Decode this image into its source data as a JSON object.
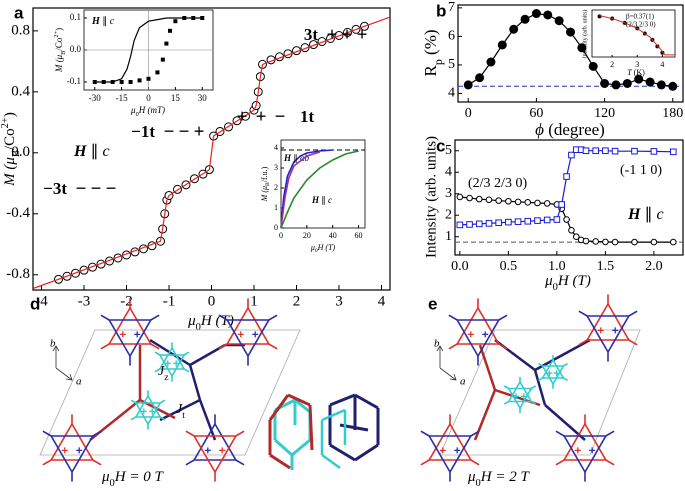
{
  "chart_data": [
    {
      "type": "scatter",
      "label": "a",
      "xlabel": [
        "μ",
        "0",
        "H (T)"
      ],
      "ylabel": [
        "M (μ",
        "B",
        "/Co",
        "2+",
        ")"
      ],
      "xlim": [
        -4.2,
        4.2
      ],
      "ylim": [
        -0.9,
        0.95
      ],
      "xticks": [
        -4,
        -3,
        -2,
        -1,
        0,
        1,
        2,
        3,
        4
      ],
      "yticks": [
        -0.8,
        -0.4,
        {
          "value": 0,
          "label": "0.0"
        },
        0.4,
        0.8
      ],
      "series": [
        {
          "color": "#000000",
          "marker": "open-circle",
          "x": [
            -3.6,
            -3.4,
            -3.2,
            -3.0,
            -2.8,
            -2.6,
            -2.4,
            -2.2,
            -2.0,
            -1.8,
            -1.6,
            -1.4,
            -1.2,
            -1.15,
            -1.1,
            -1.05,
            -1.0,
            -0.8,
            -0.6,
            -0.4,
            -0.2,
            -0.05,
            0.05,
            0.2,
            0.4,
            0.6,
            0.8,
            1.0,
            1.05,
            1.1,
            1.15,
            1.2,
            1.4,
            1.6,
            1.8,
            2.0,
            2.2,
            2.4,
            2.6,
            2.8,
            3.0,
            3.2,
            3.4,
            3.6
          ],
          "values": [
            -0.83,
            -0.81,
            -0.79,
            -0.77,
            -0.75,
            -0.73,
            -0.71,
            -0.69,
            -0.67,
            -0.65,
            -0.63,
            -0.61,
            -0.58,
            -0.5,
            -0.4,
            -0.31,
            -0.28,
            -0.24,
            -0.21,
            -0.17,
            -0.14,
            -0.11,
            0.11,
            0.14,
            0.17,
            0.21,
            0.24,
            0.28,
            0.31,
            0.4,
            0.5,
            0.58,
            0.61,
            0.63,
            0.65,
            0.67,
            0.69,
            0.71,
            0.73,
            0.75,
            0.77,
            0.79,
            0.81,
            0.83
          ]
        },
        {
          "color": "#e8231c",
          "marker": "none",
          "line": "solid",
          "x": [
            -4.2,
            -3.6,
            -1.2,
            -1.15,
            -1.1,
            -1.05,
            -1.0,
            -0.05,
            0.05,
            1.0,
            1.05,
            1.1,
            1.15,
            1.2,
            3.6,
            4.2
          ],
          "values": [
            -0.89,
            -0.83,
            -0.58,
            -0.5,
            -0.4,
            -0.31,
            -0.28,
            -0.11,
            0.11,
            0.28,
            0.31,
            0.4,
            0.5,
            0.58,
            0.83,
            0.89
          ]
        }
      ],
      "annotations": [
        {
          "text": "3t",
          "signs": [
            "+",
            "+",
            "+"
          ]
        },
        {
          "text": "1t",
          "signs": [
            "+",
            "+",
            "−"
          ]
        },
        {
          "text": "−1t",
          "signs": [
            "−",
            "−",
            "+"
          ]
        },
        {
          "text": "−3t",
          "signs": [
            "−",
            "−",
            "−"
          ]
        }
      ],
      "sign_colors": [
        "#e8231c",
        "#2b2fa8",
        "#22d3d3"
      ],
      "annotation": [
        "H",
        " ∥ ",
        "c"
      ]
    },
    {
      "type": "scatter",
      "xlim": [
        -36,
        36
      ],
      "ylim": [
        -0.125,
        0.125
      ],
      "xticks": [
        -30,
        -15,
        0,
        15,
        30
      ],
      "yticks": [
        -0.1,
        {
          "value": 0,
          "label": "0.0"
        },
        0.1
      ],
      "zero_lines": true,
      "xlabel": [
        "μ",
        "0",
        "H (mT)"
      ],
      "ylabel": [
        "M (μ",
        "B",
        "/Co",
        "2+",
        ")"
      ],
      "annotation": [
        "H",
        " ∥ ",
        "c"
      ],
      "series": [
        {
          "color": "#000000",
          "marker": "square",
          "x": [
            -30,
            -25,
            -20,
            -15,
            -10,
            -5,
            0,
            5,
            8,
            10,
            12,
            15,
            20,
            25,
            30
          ],
          "values": [
            -0.1,
            -0.1,
            -0.1,
            -0.1,
            -0.1,
            -0.095,
            -0.09,
            -0.07,
            -0.03,
            0.02,
            0.06,
            0.09,
            0.1,
            0.1,
            0.1
          ]
        },
        {
          "color": "#000000",
          "line": "solid",
          "x": [
            30,
            20,
            10,
            5,
            0,
            -5,
            -8,
            -10,
            -12,
            -15,
            -20,
            -30
          ],
          "values": [
            0.1,
            0.1,
            0.1,
            0.095,
            0.09,
            0.07,
            0.03,
            -0.02,
            -0.06,
            -0.09,
            -0.1,
            -0.1
          ]
        }
      ]
    },
    {
      "type": "line",
      "xlim": [
        0,
        65
      ],
      "ylim": [
        0,
        4.4
      ],
      "xticks": [
        0,
        20,
        40,
        60
      ],
      "yticks": [
        0,
        1,
        2,
        3,
        4
      ],
      "xlabel": [
        "μ",
        "0",
        "H (T)"
      ],
      "ylabel": [
        "M (μ",
        "B",
        "/f.u.)"
      ],
      "reference_lines": [
        {
          "value": 3.9,
          "color": "#000000"
        }
      ],
      "series": [
        {
          "name": [
            "H",
            " ∥ ",
            "ab"
          ],
          "color": "#2020d0",
          "line": "solid",
          "x": [
            0,
            2,
            5,
            10,
            15,
            20,
            30,
            40
          ],
          "values": [
            0,
            1.5,
            2.6,
            3.3,
            3.6,
            3.75,
            3.85,
            3.9
          ]
        },
        {
          "color": "#a030a0",
          "line": "solid",
          "x": [
            0,
            3,
            6,
            10,
            20,
            30
          ],
          "values": [
            0,
            1.5,
            2.5,
            3.1,
            3.6,
            3.8
          ]
        },
        {
          "name": [
            "H",
            " ∥ ",
            "c"
          ],
          "color": "#2a8a2a",
          "line": "solid",
          "x": [
            0,
            5,
            10,
            20,
            30,
            40,
            50,
            60
          ],
          "values": [
            0,
            0.8,
            1.5,
            2.4,
            3.0,
            3.4,
            3.7,
            3.85
          ]
        }
      ]
    },
    {
      "type": "scatter",
      "label": "b",
      "xlim": [
        -9,
        189
      ],
      "ylim": [
        3.7,
        7.1
      ],
      "xticks": [
        0,
        60,
        120,
        180
      ],
      "yticks": [
        4,
        5,
        6,
        7
      ],
      "xlabel": [
        "ϕ",
        " (degree)"
      ],
      "ylabel": [
        "R",
        "p",
        " (%)"
      ],
      "reference_lines": [
        {
          "value": 4.25,
          "color": "#2233cc"
        }
      ],
      "series": [
        {
          "color": "#000000",
          "marker": "filled-circle",
          "line": "solid",
          "x": [
            0,
            10,
            20,
            30,
            40,
            50,
            60,
            70,
            80,
            90,
            100,
            110,
            120,
            130,
            140,
            150,
            160,
            170,
            180
          ],
          "values": [
            4.3,
            4.55,
            5.1,
            5.7,
            6.25,
            6.6,
            6.8,
            6.75,
            6.55,
            6.15,
            5.6,
            4.95,
            4.35,
            4.3,
            4.35,
            4.5,
            4.4,
            4.3,
            4.25
          ]
        }
      ]
    },
    {
      "type": "scatter",
      "xlim": [
        1.2,
        4.5
      ],
      "ylim": [
        -0.05,
        1.05
      ],
      "xticks": [
        2,
        3,
        4
      ],
      "xlabel": [
        "T",
        " (K)"
      ],
      "ylabel": "Intensity (arb. units)",
      "annotations": [
        "β=0.37(1)",
        "(2/3 2/3 0)"
      ],
      "series": [
        {
          "color": "#000000",
          "marker": "filled-circle",
          "x": [
            1.5,
            2,
            2.5,
            3,
            3.3,
            3.6,
            3.8,
            4.0
          ],
          "values": [
            0.9,
            0.85,
            0.75,
            0.62,
            0.5,
            0.35,
            0.2,
            0.05
          ]
        },
        {
          "color": "#d03020",
          "line": "solid",
          "x": [
            1.5,
            2,
            2.5,
            3,
            3.5,
            3.9,
            4.1,
            4.5
          ],
          "values": [
            0.92,
            0.85,
            0.75,
            0.62,
            0.42,
            0.15,
            0,
            0
          ]
        }
      ]
    },
    {
      "type": "line",
      "label": "c",
      "xlim": [
        -0.05,
        2.3
      ],
      "ylim": [
        0.15,
        5.5
      ],
      "xticks": [
        {
          "value": 0,
          "label": "0.0"
        },
        0.5,
        {
          "value": 1,
          "label": "1.0"
        },
        1.5,
        {
          "value": 2,
          "label": "2.0"
        }
      ],
      "yticks": [
        1,
        2,
        3,
        4,
        5
      ],
      "xlabel": [
        "μ",
        "0",
        "H (T)"
      ],
      "ylabel": "Intensity (arb. units)",
      "annotation": [
        "H",
        " ∥ ",
        "c"
      ],
      "reference_lines": [
        {
          "value": 0.75,
          "color": "#555555"
        }
      ],
      "x": [
        0,
        0.1,
        0.2,
        0.3,
        0.4,
        0.5,
        0.6,
        0.7,
        0.8,
        0.9,
        1.0,
        1.05,
        1.1,
        1.15,
        1.2,
        1.25,
        1.3,
        1.4,
        1.5,
        1.6,
        1.8,
        2.0,
        2.2
      ],
      "series": [
        {
          "name": "(2/3 2/3 0)",
          "color": "#000000",
          "marker": "open-circle",
          "line": "solid",
          "values": [
            2.85,
            2.8,
            2.75,
            2.72,
            2.68,
            2.65,
            2.62,
            2.6,
            2.57,
            2.55,
            2.5,
            2.3,
            1.8,
            1.3,
            1.0,
            0.85,
            0.8,
            0.78,
            0.76,
            0.75,
            0.75,
            0.75,
            0.75
          ]
        },
        {
          "name": "(-1 1 0)",
          "color": "#1a1adb",
          "marker": "open-square",
          "line": "solid",
          "values": [
            1.55,
            1.57,
            1.6,
            1.62,
            1.65,
            1.68,
            1.7,
            1.72,
            1.75,
            1.78,
            1.8,
            2.5,
            3.8,
            4.8,
            5.05,
            5.05,
            5.0,
            5.0,
            5.0,
            4.98,
            4.98,
            4.97,
            4.95
          ]
        }
      ]
    }
  ],
  "structures": [
    {
      "label": "d",
      "caption": [
        "μ",
        "0",
        "H = 0 T"
      ],
      "axes": [
        "b",
        "a"
      ],
      "couplings": [
        [
          "J",
          "z"
        ],
        [
          "J",
          "t"
        ]
      ]
    },
    {
      "label": "e",
      "caption": [
        "μ",
        "0",
        "H = 2 T"
      ],
      "axes": [
        "b",
        "a"
      ]
    }
  ]
}
